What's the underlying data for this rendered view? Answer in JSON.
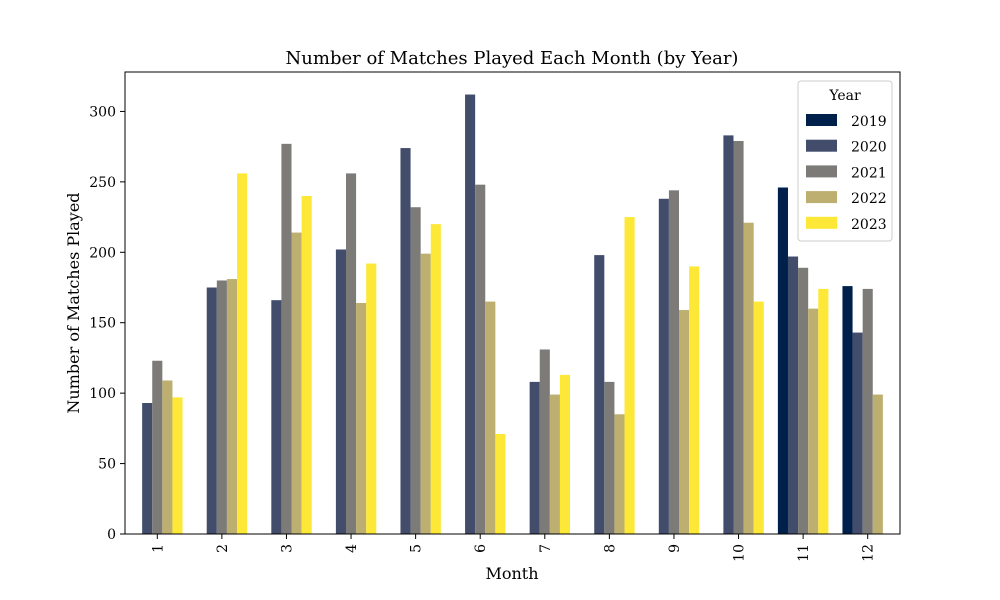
{
  "chart_data": {
    "type": "bar",
    "title": "Number of Matches Played Each Month (by Year)",
    "xlabel": "Month",
    "ylabel": "Number of Matches Played",
    "categories": [
      "1",
      "2",
      "3",
      "4",
      "5",
      "6",
      "7",
      "8",
      "9",
      "10",
      "11",
      "12"
    ],
    "yticks": [
      0,
      50,
      100,
      150,
      200,
      250,
      300
    ],
    "ylim": [
      0,
      328
    ],
    "legend": {
      "title": "Year",
      "position": "top-right"
    },
    "series": [
      {
        "name": "2019",
        "color": "#00204c",
        "values": [
          null,
          null,
          null,
          null,
          null,
          null,
          null,
          null,
          null,
          null,
          246,
          176
        ]
      },
      {
        "name": "2020",
        "color": "#414d6b",
        "values": [
          93,
          175,
          166,
          202,
          274,
          312,
          108,
          198,
          238,
          283,
          197,
          143
        ]
      },
      {
        "name": "2021",
        "color": "#7c7b78",
        "values": [
          123,
          180,
          277,
          256,
          232,
          248,
          131,
          108,
          244,
          279,
          189,
          174
        ]
      },
      {
        "name": "2022",
        "color": "#bcaf6f",
        "values": [
          109,
          181,
          214,
          164,
          199,
          165,
          99,
          85,
          159,
          221,
          160,
          99
        ]
      },
      {
        "name": "2023",
        "color": "#fde838",
        "values": [
          97,
          256,
          240,
          192,
          220,
          71,
          113,
          225,
          190,
          165,
          174,
          null
        ]
      }
    ]
  }
}
